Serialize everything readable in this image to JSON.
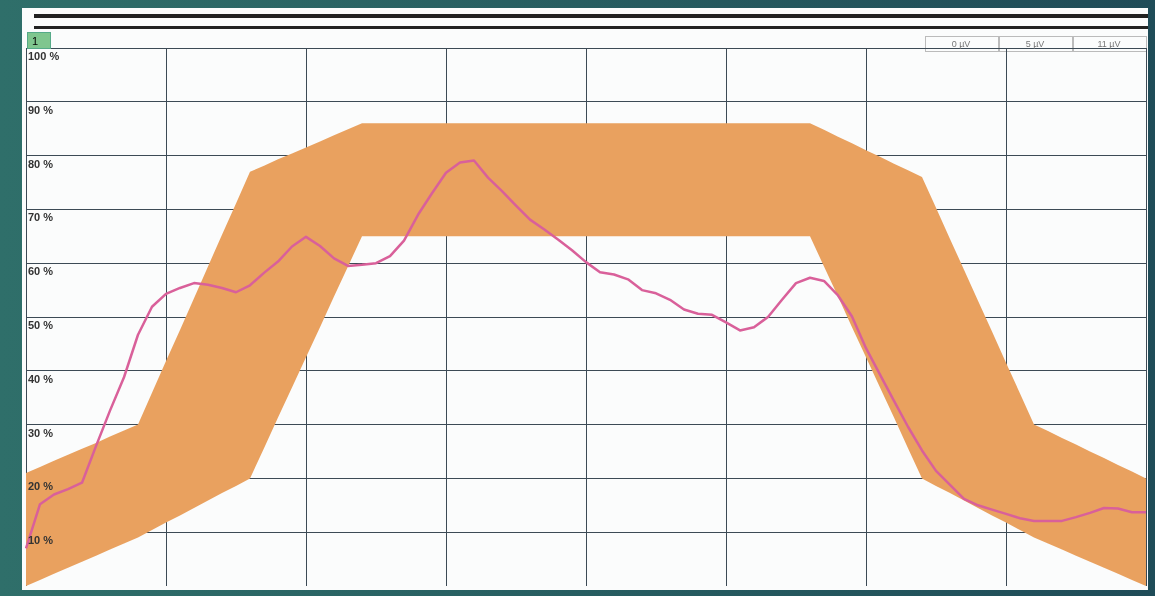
{
  "chart_data": {
    "type": "line",
    "annotations": [
      "1",
      "0 µV",
      "5 µV",
      "11 µV"
    ],
    "categories": [
      null,
      null,
      null,
      null,
      null,
      null,
      null,
      null,
      null,
      null,
      null,
      null,
      null,
      null,
      null,
      null,
      null,
      null,
      null,
      null,
      null,
      null,
      null,
      null,
      null,
      null,
      null,
      null,
      null,
      null,
      null,
      null,
      null,
      null,
      null,
      null,
      null,
      null,
      null,
      null,
      null,
      null,
      null,
      null,
      null,
      null,
      null,
      null,
      null,
      null,
      null,
      null,
      null,
      null,
      null,
      null,
      null,
      null,
      null,
      null,
      null,
      null,
      null,
      null,
      null,
      null,
      null,
      null,
      null,
      null,
      null,
      null,
      null,
      null,
      null,
      null,
      null,
      null,
      null,
      null,
      null
    ],
    "ylim": [
      0,
      100
    ],
    "yticks": [
      {
        "value": 10,
        "label": "10 %"
      },
      {
        "value": 20,
        "label": "20 %"
      },
      {
        "value": 30,
        "label": "30 %"
      },
      {
        "value": 40,
        "label": "40 %"
      },
      {
        "value": 50,
        "label": "50 %"
      },
      {
        "value": 60,
        "label": "60 %"
      },
      {
        "value": 70,
        "label": "70 %"
      },
      {
        "value": 80,
        "label": "80 %"
      },
      {
        "value": 90,
        "label": "90 %"
      },
      {
        "value": 100,
        "label": "100 %"
      }
    ],
    "tick_labels": "y",
    "grid": true,
    "legend": false,
    "marker": "none",
    "line_style": "solid",
    "series": [
      {
        "type": "line",
        "color": "#d9609a",
        "lower": [
          0,
          1.1,
          2.3,
          3.4,
          4.5,
          5.6,
          6.8,
          7.9,
          9,
          10.4,
          11.8,
          13.1,
          14.5,
          15.9,
          17.3,
          18.6,
          20,
          25.6,
          31.3,
          36.9,
          42.5,
          48.1,
          53.8,
          59.4,
          65,
          65,
          65,
          65,
          65,
          65,
          65,
          65,
          65,
          65,
          65,
          65,
          65,
          65,
          65,
          65,
          65,
          65,
          65,
          65,
          65,
          65,
          65,
          65,
          65,
          65,
          65,
          65,
          65,
          65,
          65,
          65,
          65,
          59.4,
          53.8,
          48.1,
          42.5,
          36.9,
          31.3,
          25.6,
          20,
          18.6,
          17.3,
          15.9,
          14.5,
          13.1,
          11.8,
          10.4,
          9,
          7.9,
          6.8,
          5.6,
          4.5,
          3.4,
          2.3,
          1.1,
          0
        ],
        "upper": [
          21,
          22.1,
          23.3,
          24.4,
          25.5,
          26.6,
          27.8,
          28.9,
          30,
          35.9,
          41.8,
          47.6,
          53.5,
          59.4,
          65.3,
          71.1,
          77,
          78.1,
          79.3,
          80.4,
          81.5,
          82.6,
          83.8,
          84.9,
          86,
          86,
          86,
          86,
          86,
          86,
          86,
          86,
          86,
          86,
          86,
          86,
          86,
          86,
          86,
          86,
          86,
          86,
          86,
          86,
          86,
          86,
          86,
          86,
          86,
          86,
          86,
          86,
          86,
          86,
          86,
          86,
          86,
          84.8,
          83.5,
          82.3,
          81,
          79.8,
          78.5,
          77.3,
          76,
          70.3,
          64.5,
          58.8,
          53,
          47.3,
          41.5,
          35.8,
          30,
          28.8,
          27.5,
          26.3,
          25,
          23.8,
          22.5,
          21.3,
          20
        ],
        "values": [
          7,
          15.2,
          17,
          18,
          19.2,
          26,
          32.6,
          38.8,
          46.7,
          51.9,
          54.3,
          55.4,
          56.3,
          56,
          55.4,
          54.6,
          55.9,
          58.2,
          60.3,
          63.1,
          64.9,
          63.2,
          60.9,
          59.5,
          59.7,
          60,
          61.3,
          64.2,
          69,
          73,
          76.8,
          78.7,
          79.1,
          75.9,
          73.4,
          70.7,
          68.1,
          66.3,
          64.4,
          62.4,
          60.2,
          58.3,
          57.9,
          57,
          55,
          54.4,
          53.2,
          51.4,
          50.6,
          50.4,
          49,
          47.5,
          48.1,
          50,
          53.2,
          56.3,
          57.3,
          56.7,
          54,
          50.1,
          44.2,
          39.3,
          34.4,
          29.6,
          25.2,
          21.4,
          18.8,
          16.2,
          15,
          14.2,
          13.4,
          12.6,
          12.1,
          12.1,
          12.1,
          12.8,
          13.6,
          14.5,
          14.4,
          13.7,
          13.7
        ]
      }
    ]
  }
}
